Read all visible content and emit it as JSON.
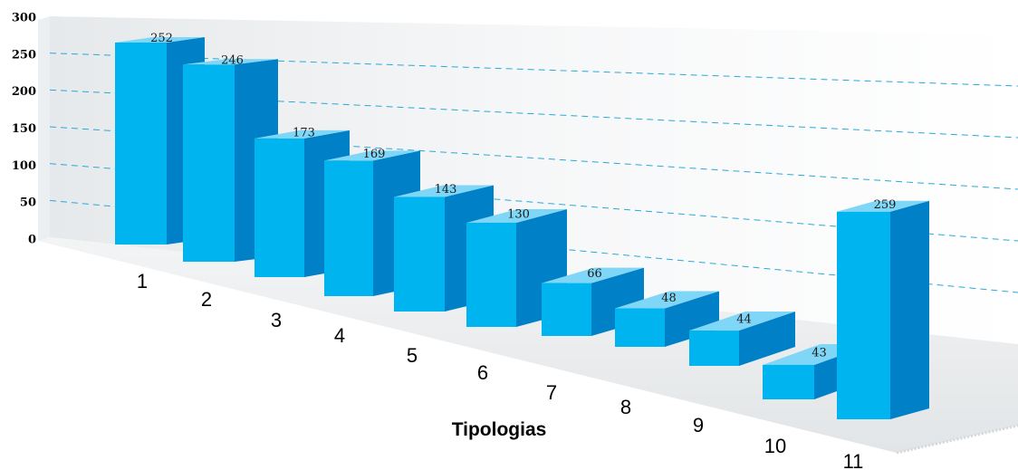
{
  "chart_data": {
    "type": "bar",
    "style": "3d",
    "categories": [
      "1",
      "2",
      "3",
      "4",
      "5",
      "6",
      "7",
      "8",
      "9",
      "10",
      "11"
    ],
    "values": [
      252,
      246,
      173,
      169,
      143,
      130,
      66,
      48,
      44,
      43,
      259
    ],
    "xlabel": "Tipologias",
    "ylabel": "",
    "title": "",
    "ylim": [
      0,
      300
    ],
    "yticks": [
      0,
      50,
      100,
      150,
      200,
      250,
      300
    ],
    "grid": true,
    "legend": "none",
    "colors": {
      "bar_front": "#00b5ef",
      "bar_side": "#0080c6",
      "bar_top": "#7fd6f6",
      "grid": "#29a9d8",
      "wall": "#eef1f3",
      "floor": "#e8eaec"
    }
  }
}
